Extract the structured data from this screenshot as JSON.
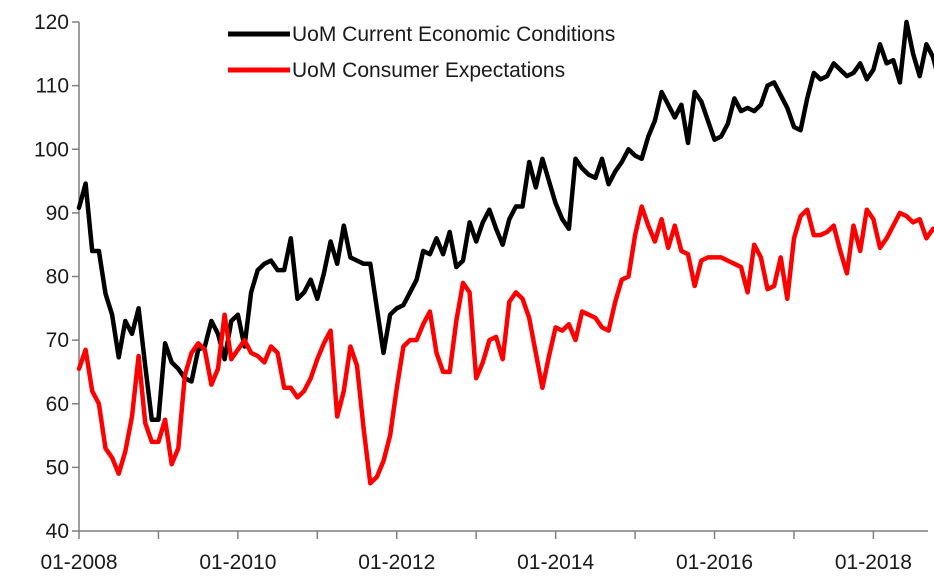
{
  "chart_data": {
    "type": "line",
    "title": "",
    "xlabel": "",
    "ylabel": "",
    "x_start": "2008-01",
    "x_end": "2018-08",
    "ylim": [
      40,
      120
    ],
    "yticks": [
      40,
      50,
      60,
      70,
      80,
      90,
      100,
      110,
      120
    ],
    "xticks": [
      "01-2008",
      "01-2010",
      "01-2012",
      "01-2014",
      "01-2016",
      "01-2018"
    ],
    "grid": false,
    "legend_position": "top-center",
    "series": [
      {
        "name": "UoM Current Economic Conditions",
        "color": "#000000",
        "points": [
          [
            "2008-01",
            90.8
          ],
          [
            "2008-02",
            94.6
          ],
          [
            "2008-03",
            84.0
          ],
          [
            "2008-04",
            84.0
          ],
          [
            "2008-05",
            77.3
          ],
          [
            "2008-06",
            74.0
          ],
          [
            "2008-07",
            67.3
          ],
          [
            "2008-08",
            73.0
          ],
          [
            "2008-09",
            71.0
          ],
          [
            "2008-10",
            75.0
          ],
          [
            "2008-11",
            66.0
          ],
          [
            "2008-12",
            57.5
          ],
          [
            "2009-01",
            57.5
          ],
          [
            "2009-02",
            69.5
          ],
          [
            "2009-03",
            66.5
          ],
          [
            "2009-04",
            65.5
          ],
          [
            "2009-05",
            64.0
          ],
          [
            "2009-06",
            63.5
          ],
          [
            "2009-07",
            68.5
          ],
          [
            "2009-08",
            69.0
          ],
          [
            "2009-09",
            73.0
          ],
          [
            "2009-10",
            71.0
          ],
          [
            "2009-11",
            67.0
          ],
          [
            "2009-12",
            73.0
          ],
          [
            "2010-01",
            74.0
          ],
          [
            "2010-02",
            69.0
          ],
          [
            "2010-03",
            77.5
          ],
          [
            "2010-04",
            81.0
          ],
          [
            "2010-05",
            82.0
          ],
          [
            "2010-06",
            82.5
          ],
          [
            "2010-07",
            81.0
          ],
          [
            "2010-08",
            81.0
          ],
          [
            "2010-09",
            86.0
          ],
          [
            "2010-10",
            76.5
          ],
          [
            "2010-11",
            77.5
          ],
          [
            "2010-12",
            79.5
          ],
          [
            "2011-01",
            76.5
          ],
          [
            "2011-02",
            80.5
          ],
          [
            "2011-03",
            85.5
          ],
          [
            "2011-04",
            82.0
          ],
          [
            "2011-05",
            88.0
          ],
          [
            "2011-06",
            83.0
          ],
          [
            "2011-07",
            82.5
          ],
          [
            "2011-08",
            82.0
          ],
          [
            "2011-09",
            82.0
          ],
          [
            "2011-10",
            75.0
          ],
          [
            "2011-11",
            68.0
          ],
          [
            "2011-12",
            74.0
          ],
          [
            "2012-01",
            75.0
          ],
          [
            "2012-02",
            75.5
          ],
          [
            "2012-03",
            77.5
          ],
          [
            "2012-04",
            79.5
          ],
          [
            "2012-05",
            84.0
          ],
          [
            "2012-06",
            83.5
          ],
          [
            "2012-07",
            86.0
          ],
          [
            "2012-08",
            83.5
          ],
          [
            "2012-09",
            87.0
          ],
          [
            "2012-10",
            81.5
          ],
          [
            "2012-11",
            82.5
          ],
          [
            "2012-12",
            88.5
          ],
          [
            "2013-01",
            85.5
          ],
          [
            "2013-02",
            88.5
          ],
          [
            "2013-03",
            90.5
          ],
          [
            "2013-04",
            87.5
          ],
          [
            "2013-05",
            85.0
          ],
          [
            "2013-06",
            89.0
          ],
          [
            "2013-07",
            91.0
          ],
          [
            "2013-08",
            91.0
          ],
          [
            "2013-09",
            98.0
          ],
          [
            "2013-10",
            94.0
          ],
          [
            "2013-11",
            98.5
          ],
          [
            "2013-12",
            95.0
          ],
          [
            "2014-01",
            91.5
          ],
          [
            "2014-02",
            89.0
          ],
          [
            "2014-03",
            87.5
          ],
          [
            "2014-04",
            98.5
          ],
          [
            "2014-05",
            97.0
          ],
          [
            "2014-06",
            96.0
          ],
          [
            "2014-07",
            95.5
          ],
          [
            "2014-08",
            98.5
          ],
          [
            "2014-09",
            94.5
          ],
          [
            "2014-10",
            96.5
          ],
          [
            "2014-11",
            98.0
          ],
          [
            "2014-12",
            100.0
          ],
          [
            "2015-01",
            99.0
          ],
          [
            "2015-02",
            98.5
          ],
          [
            "2015-03",
            102.0
          ],
          [
            "2015-04",
            104.5
          ],
          [
            "2015-05",
            109.0
          ],
          [
            "2015-06",
            107.0
          ],
          [
            "2015-07",
            105.0
          ],
          [
            "2015-08",
            107.0
          ],
          [
            "2015-09",
            101.0
          ],
          [
            "2015-10",
            109.0
          ],
          [
            "2015-11",
            107.5
          ],
          [
            "2015-12",
            104.5
          ],
          [
            "2016-01",
            101.5
          ],
          [
            "2016-02",
            102.0
          ],
          [
            "2016-03",
            104.0
          ],
          [
            "2016-04",
            108.0
          ],
          [
            "2016-05",
            106.0
          ],
          [
            "2016-06",
            106.5
          ],
          [
            "2016-07",
            106.0
          ],
          [
            "2016-08",
            107.0
          ],
          [
            "2016-09",
            110.0
          ],
          [
            "2016-10",
            110.5
          ],
          [
            "2016-11",
            108.5
          ],
          [
            "2016-12",
            106.5
          ],
          [
            "2017-01",
            103.5
          ],
          [
            "2017-02",
            103.0
          ],
          [
            "2017-03",
            108.0
          ],
          [
            "2017-04",
            112.0
          ],
          [
            "2017-05",
            111.0
          ],
          [
            "2017-06",
            111.5
          ],
          [
            "2017-07",
            113.5
          ],
          [
            "2017-08",
            112.5
          ],
          [
            "2017-09",
            111.5
          ],
          [
            "2017-10",
            112.0
          ],
          [
            "2017-11",
            113.5
          ],
          [
            "2017-12",
            111.0
          ],
          [
            "2018-01",
            112.5
          ],
          [
            "2018-02",
            116.5
          ],
          [
            "2018-03",
            113.5
          ],
          [
            "2018-04",
            114.0
          ],
          [
            "2018-05",
            110.5
          ],
          [
            "2018-06",
            120.0
          ],
          [
            "2018-07",
            115.0
          ],
          [
            "2018-08",
            111.5
          ],
          [
            "2018-09",
            116.5
          ],
          [
            "2018-10",
            114.5
          ],
          [
            "2018-11",
            110.5
          ]
        ]
      },
      {
        "name": "UoM Consumer Expectations",
        "color": "#ff0000",
        "points": [
          [
            "2008-01",
            65.5
          ],
          [
            "2008-02",
            68.5
          ],
          [
            "2008-03",
            62.0
          ],
          [
            "2008-04",
            60.0
          ],
          [
            "2008-05",
            53.0
          ],
          [
            "2008-06",
            51.5
          ],
          [
            "2008-07",
            49.0
          ],
          [
            "2008-08",
            52.5
          ],
          [
            "2008-09",
            58.0
          ],
          [
            "2008-10",
            67.5
          ],
          [
            "2008-11",
            57.0
          ],
          [
            "2008-12",
            54.0
          ],
          [
            "2009-01",
            54.0
          ],
          [
            "2009-02",
            57.5
          ],
          [
            "2009-03",
            50.5
          ],
          [
            "2009-04",
            53.0
          ],
          [
            "2009-05",
            64.5
          ],
          [
            "2009-06",
            68.0
          ],
          [
            "2009-07",
            69.5
          ],
          [
            "2009-08",
            68.5
          ],
          [
            "2009-09",
            63.0
          ],
          [
            "2009-10",
            65.5
          ],
          [
            "2009-11",
            74.0
          ],
          [
            "2009-12",
            67.0
          ],
          [
            "2010-01",
            68.5
          ],
          [
            "2010-02",
            70.0
          ],
          [
            "2010-03",
            68.0
          ],
          [
            "2010-04",
            67.5
          ],
          [
            "2010-05",
            66.5
          ],
          [
            "2010-06",
            69.0
          ],
          [
            "2010-07",
            68.0
          ],
          [
            "2010-08",
            62.5
          ],
          [
            "2010-09",
            62.5
          ],
          [
            "2010-10",
            61.0
          ],
          [
            "2010-11",
            62.0
          ],
          [
            "2010-12",
            64.0
          ],
          [
            "2011-01",
            67.0
          ],
          [
            "2011-02",
            69.5
          ],
          [
            "2011-03",
            71.5
          ],
          [
            "2011-04",
            58.0
          ],
          [
            "2011-05",
            62.0
          ],
          [
            "2011-06",
            69.0
          ],
          [
            "2011-07",
            66.0
          ],
          [
            "2011-08",
            56.0
          ],
          [
            "2011-09",
            47.5
          ],
          [
            "2011-10",
            48.5
          ],
          [
            "2011-11",
            51.0
          ],
          [
            "2011-12",
            55.0
          ],
          [
            "2012-01",
            62.5
          ],
          [
            "2012-02",
            69.0
          ],
          [
            "2012-03",
            70.0
          ],
          [
            "2012-04",
            70.0
          ],
          [
            "2012-05",
            72.5
          ],
          [
            "2012-06",
            74.5
          ],
          [
            "2012-07",
            68.0
          ],
          [
            "2012-08",
            65.0
          ],
          [
            "2012-09",
            65.0
          ],
          [
            "2012-10",
            73.0
          ],
          [
            "2012-11",
            79.0
          ],
          [
            "2012-12",
            77.5
          ],
          [
            "2013-01",
            64.0
          ],
          [
            "2013-02",
            66.5
          ],
          [
            "2013-03",
            70.0
          ],
          [
            "2013-04",
            70.5
          ],
          [
            "2013-05",
            67.0
          ],
          [
            "2013-06",
            76.0
          ],
          [
            "2013-07",
            77.5
          ],
          [
            "2013-08",
            76.5
          ],
          [
            "2013-09",
            73.5
          ],
          [
            "2013-10",
            68.0
          ],
          [
            "2013-11",
            62.5
          ],
          [
            "2013-12",
            67.5
          ],
          [
            "2014-01",
            72.0
          ],
          [
            "2014-02",
            71.5
          ],
          [
            "2014-03",
            72.5
          ],
          [
            "2014-04",
            70.0
          ],
          [
            "2014-05",
            74.5
          ],
          [
            "2014-06",
            74.0
          ],
          [
            "2014-07",
            73.5
          ],
          [
            "2014-08",
            72.0
          ],
          [
            "2014-09",
            71.5
          ],
          [
            "2014-10",
            76.0
          ],
          [
            "2014-11",
            79.5
          ],
          [
            "2014-12",
            80.0
          ],
          [
            "2015-01",
            86.5
          ],
          [
            "2015-02",
            91.0
          ],
          [
            "2015-03",
            88.0
          ],
          [
            "2015-04",
            85.5
          ],
          [
            "2015-05",
            89.0
          ],
          [
            "2015-06",
            84.5
          ],
          [
            "2015-07",
            88.0
          ],
          [
            "2015-08",
            84.0
          ],
          [
            "2015-09",
            83.5
          ],
          [
            "2015-10",
            78.5
          ],
          [
            "2015-11",
            82.5
          ],
          [
            "2015-12",
            83.0
          ],
          [
            "2016-01",
            83.0
          ],
          [
            "2016-02",
            83.0
          ],
          [
            "2016-03",
            82.5
          ],
          [
            "2016-04",
            82.0
          ],
          [
            "2016-05",
            81.5
          ],
          [
            "2016-06",
            77.5
          ],
          [
            "2016-07",
            85.0
          ],
          [
            "2016-08",
            83.0
          ],
          [
            "2016-09",
            78.0
          ],
          [
            "2016-10",
            78.5
          ],
          [
            "2016-11",
            83.0
          ],
          [
            "2016-12",
            76.5
          ],
          [
            "2017-01",
            86.0
          ],
          [
            "2017-02",
            89.5
          ],
          [
            "2017-03",
            90.5
          ],
          [
            "2017-04",
            86.5
          ],
          [
            "2017-05",
            86.5
          ],
          [
            "2017-06",
            87.0
          ],
          [
            "2017-07",
            88.0
          ],
          [
            "2017-08",
            84.0
          ],
          [
            "2017-09",
            80.5
          ],
          [
            "2017-10",
            88.0
          ],
          [
            "2017-11",
            84.0
          ],
          [
            "2017-12",
            90.5
          ],
          [
            "2018-01",
            89.0
          ],
          [
            "2018-02",
            84.5
          ],
          [
            "2018-03",
            86.0
          ],
          [
            "2018-04",
            88.0
          ],
          [
            "2018-05",
            90.0
          ],
          [
            "2018-06",
            89.5
          ],
          [
            "2018-07",
            88.5
          ],
          [
            "2018-08",
            89.0
          ],
          [
            "2018-09",
            86.0
          ],
          [
            "2018-10",
            87.5
          ],
          [
            "2018-11",
            87.0
          ]
        ]
      }
    ]
  }
}
